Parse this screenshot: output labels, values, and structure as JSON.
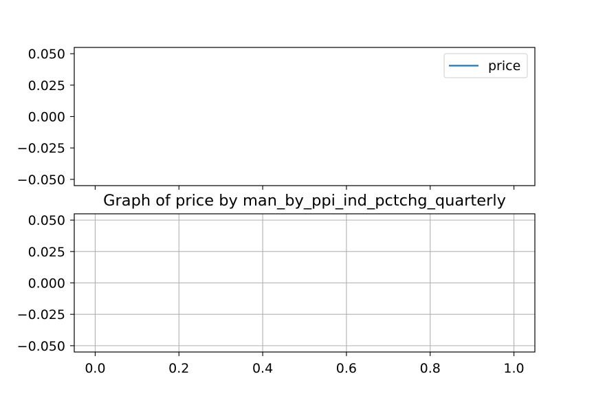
{
  "chart_data": [
    {
      "type": "line",
      "title": "",
      "xlabel": "",
      "ylabel": "",
      "xlim": [
        -0.05,
        1.05
      ],
      "ylim": [
        -0.055,
        0.055
      ],
      "x_ticks_shown": [
        0.0,
        0.2,
        0.4,
        0.6,
        0.8,
        1.0
      ],
      "x_tick_labels_visible": false,
      "y_tick_labels": [
        "0.050",
        "0.025",
        "0.000",
        "−0.025",
        "−0.050"
      ],
      "y_ticks": [
        0.05,
        0.025,
        0.0,
        -0.025,
        -0.05
      ],
      "grid": false,
      "legend_position": "top-right",
      "series": [
        {
          "name": "price",
          "color": "#1f77b4",
          "x": [],
          "y": []
        }
      ]
    },
    {
      "type": "line",
      "title": "Graph of price by man_by_ppi_ind_pctchg_quarterly",
      "xlabel": "",
      "ylabel": "",
      "xlim": [
        -0.05,
        1.05
      ],
      "ylim": [
        -0.055,
        0.055
      ],
      "x_tick_labels": [
        "0.0",
        "0.2",
        "0.4",
        "0.6",
        "0.8",
        "1.0"
      ],
      "x_ticks": [
        0.0,
        0.2,
        0.4,
        0.6,
        0.8,
        1.0
      ],
      "y_tick_labels": [
        "0.050",
        "0.025",
        "0.000",
        "−0.025",
        "−0.050"
      ],
      "y_ticks": [
        0.05,
        0.025,
        0.0,
        -0.025,
        -0.05
      ],
      "grid": true,
      "grid_color": "#b0b0b0",
      "series": []
    }
  ]
}
